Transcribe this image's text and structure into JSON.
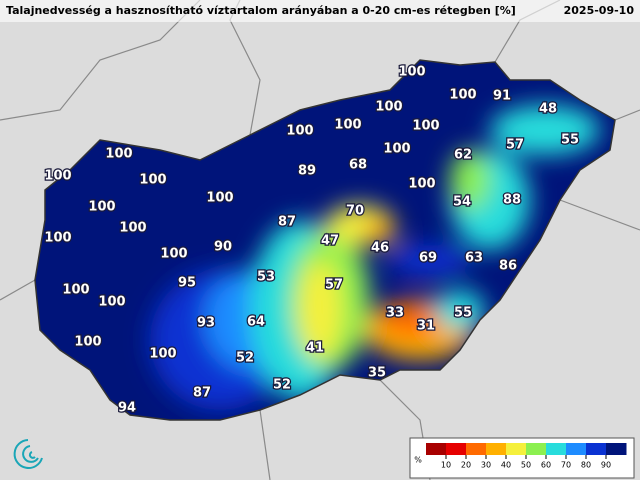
{
  "header": {
    "title": "Talajnedvesség a hasznosítható víztartalom arányában a 0-20 cm-es rétegben [%]",
    "date": "2025-09-10"
  },
  "map_labels": [
    100,
    100,
    91,
    48,
    100,
    100,
    100,
    100,
    57,
    55,
    100,
    89,
    68,
    100,
    62,
    100,
    100,
    100,
    100,
    100,
    54,
    88,
    70,
    87,
    100,
    100,
    47,
    46,
    90,
    100,
    69,
    63,
    86,
    53,
    95,
    57,
    100,
    100,
    33,
    55,
    31,
    93,
    64,
    100,
    41,
    100,
    52,
    35,
    52,
    87,
    94
  ],
  "colorbar": {
    "label": "%",
    "lim": [
      0,
      100
    ],
    "ticks": [
      10,
      20,
      30,
      40,
      50,
      60,
      70,
      80,
      90
    ],
    "colors": [
      "#a80000",
      "#e60000",
      "#ff6a00",
      "#ffb000",
      "#f5f03c",
      "#8cf050",
      "#28dcdc",
      "#1e8cff",
      "#0a32d2",
      "#00147a"
    ]
  }
}
